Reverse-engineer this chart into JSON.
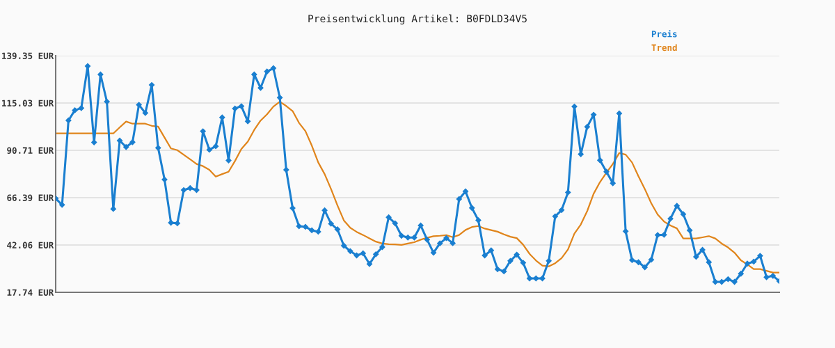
{
  "chart_data": {
    "type": "line",
    "title": "Preisentwicklung Artikel: B0FDLD34V5",
    "categories": [
      null,
      null,
      null,
      null,
      null,
      null,
      null,
      null,
      null,
      null,
      null,
      null,
      null,
      null,
      null,
      null,
      null,
      null,
      null,
      null,
      null,
      null,
      null,
      null,
      null,
      null,
      null,
      null,
      null,
      null,
      null,
      null,
      null,
      null,
      null,
      null,
      null,
      null,
      null,
      null,
      null,
      null,
      null,
      null,
      null,
      null,
      null,
      null,
      null,
      null,
      null,
      null,
      null,
      null,
      null,
      null,
      null,
      null,
      null,
      null,
      null,
      null,
      null,
      null,
      null,
      null,
      null,
      null,
      null,
      null,
      null,
      null,
      null,
      null,
      null,
      null,
      null,
      null,
      null,
      null,
      null,
      null,
      null,
      null,
      null,
      null,
      null,
      null,
      null,
      null,
      null,
      null,
      null,
      null,
      null,
      null,
      null,
      null,
      null,
      null,
      null,
      null,
      null,
      null,
      null,
      null,
      null,
      null,
      null,
      null,
      null,
      null,
      null,
      null
    ],
    "series": [
      {
        "name": "Preis",
        "color": "#1a7fd0",
        "marker": "diamond",
        "values": [
          66.0,
          62.7,
          106.1,
          111.3,
          112.4,
          134.0,
          94.8,
          129.7,
          115.7,
          60.6,
          95.7,
          92.4,
          94.9,
          114.1,
          109.9,
          124.3,
          92.0,
          75.7,
          53.5,
          53.2,
          70.3,
          71.3,
          70.3,
          100.5,
          91.0,
          92.8,
          107.6,
          85.5,
          112.2,
          113.4,
          105.6,
          129.7,
          122.8,
          131.2,
          132.9,
          117.8,
          80.7,
          61.0,
          51.7,
          51.4,
          49.6,
          48.9,
          59.9,
          53.0,
          50.1,
          41.7,
          38.9,
          36.7,
          37.8,
          32.3,
          37.3,
          41.0,
          56.3,
          53.2,
          46.8,
          45.9,
          45.9,
          52.1,
          44.8,
          38.1,
          42.9,
          45.6,
          43.0,
          65.7,
          69.6,
          61.1,
          54.8,
          36.7,
          39.3,
          29.6,
          28.5,
          33.9,
          37.1,
          32.9,
          24.9,
          24.9,
          24.9,
          33.9,
          56.8,
          60.0,
          69.1,
          113.2,
          88.7,
          102.8,
          109.0,
          85.6,
          79.7,
          73.8,
          109.7,
          49.1,
          34.3,
          33.2,
          30.6,
          34.5,
          47.2,
          47.3,
          55.6,
          62.2,
          57.9,
          49.6,
          36.0,
          39.6,
          33.2,
          23.1,
          23.1,
          24.5,
          23.1,
          27.3,
          32.5,
          33.5,
          36.5,
          25.5,
          26.2,
          23.5
        ]
      },
      {
        "name": "Trend",
        "color": "#e0851c",
        "marker": "none",
        "values": [
          99.4,
          99.4,
          99.4,
          99.4,
          99.4,
          99.4,
          99.4,
          99.4,
          99.4,
          99.4,
          102.5,
          105.5,
          104.4,
          104.4,
          104.4,
          103.3,
          102.9,
          97.3,
          91.7,
          90.8,
          88.4,
          86.1,
          83.7,
          82.6,
          80.7,
          77.2,
          78.5,
          79.7,
          85.2,
          91.4,
          95.2,
          101.2,
          106.0,
          109.2,
          113.2,
          115.7,
          113.5,
          110.9,
          104.8,
          100.6,
          93.1,
          84.5,
          78.5,
          70.8,
          62.4,
          54.7,
          50.9,
          48.8,
          47.2,
          45.5,
          43.8,
          42.8,
          42.5,
          42.4,
          42.1,
          42.8,
          43.5,
          44.8,
          45.8,
          46.6,
          46.8,
          47.1,
          46.1,
          47.2,
          49.8,
          51.3,
          51.8,
          50.5,
          49.7,
          48.9,
          47.5,
          46.3,
          45.6,
          42.2,
          37.5,
          34.1,
          31.5,
          31.1,
          32.7,
          35.3,
          39.8,
          47.9,
          52.6,
          59.5,
          68.4,
          74.4,
          79.2,
          83.7,
          89.3,
          88.5,
          84.5,
          77.4,
          70.8,
          63.5,
          57.7,
          54.1,
          52.1,
          50.6,
          45.4,
          45.4,
          45.4,
          46.0,
          46.6,
          45.4,
          42.8,
          40.8,
          38.1,
          34.2,
          32.1,
          29.7,
          29.7,
          28.8,
          27.9,
          27.9
        ]
      }
    ],
    "ylim": [
      17.74,
      139.35
    ],
    "yticks": [
      {
        "value": 17.74,
        "label": "17.74 EUR"
      },
      {
        "value": 42.06,
        "label": "42.06 EUR"
      },
      {
        "value": 66.39,
        "label": "66.39 EUR"
      },
      {
        "value": 90.71,
        "label": "90.71 EUR"
      },
      {
        "value": 115.03,
        "label": "115.03 EUR"
      },
      {
        "value": 139.35,
        "label": "139.35 EUR"
      }
    ],
    "grid": "y",
    "legend": "top right",
    "line_style": "solid"
  }
}
